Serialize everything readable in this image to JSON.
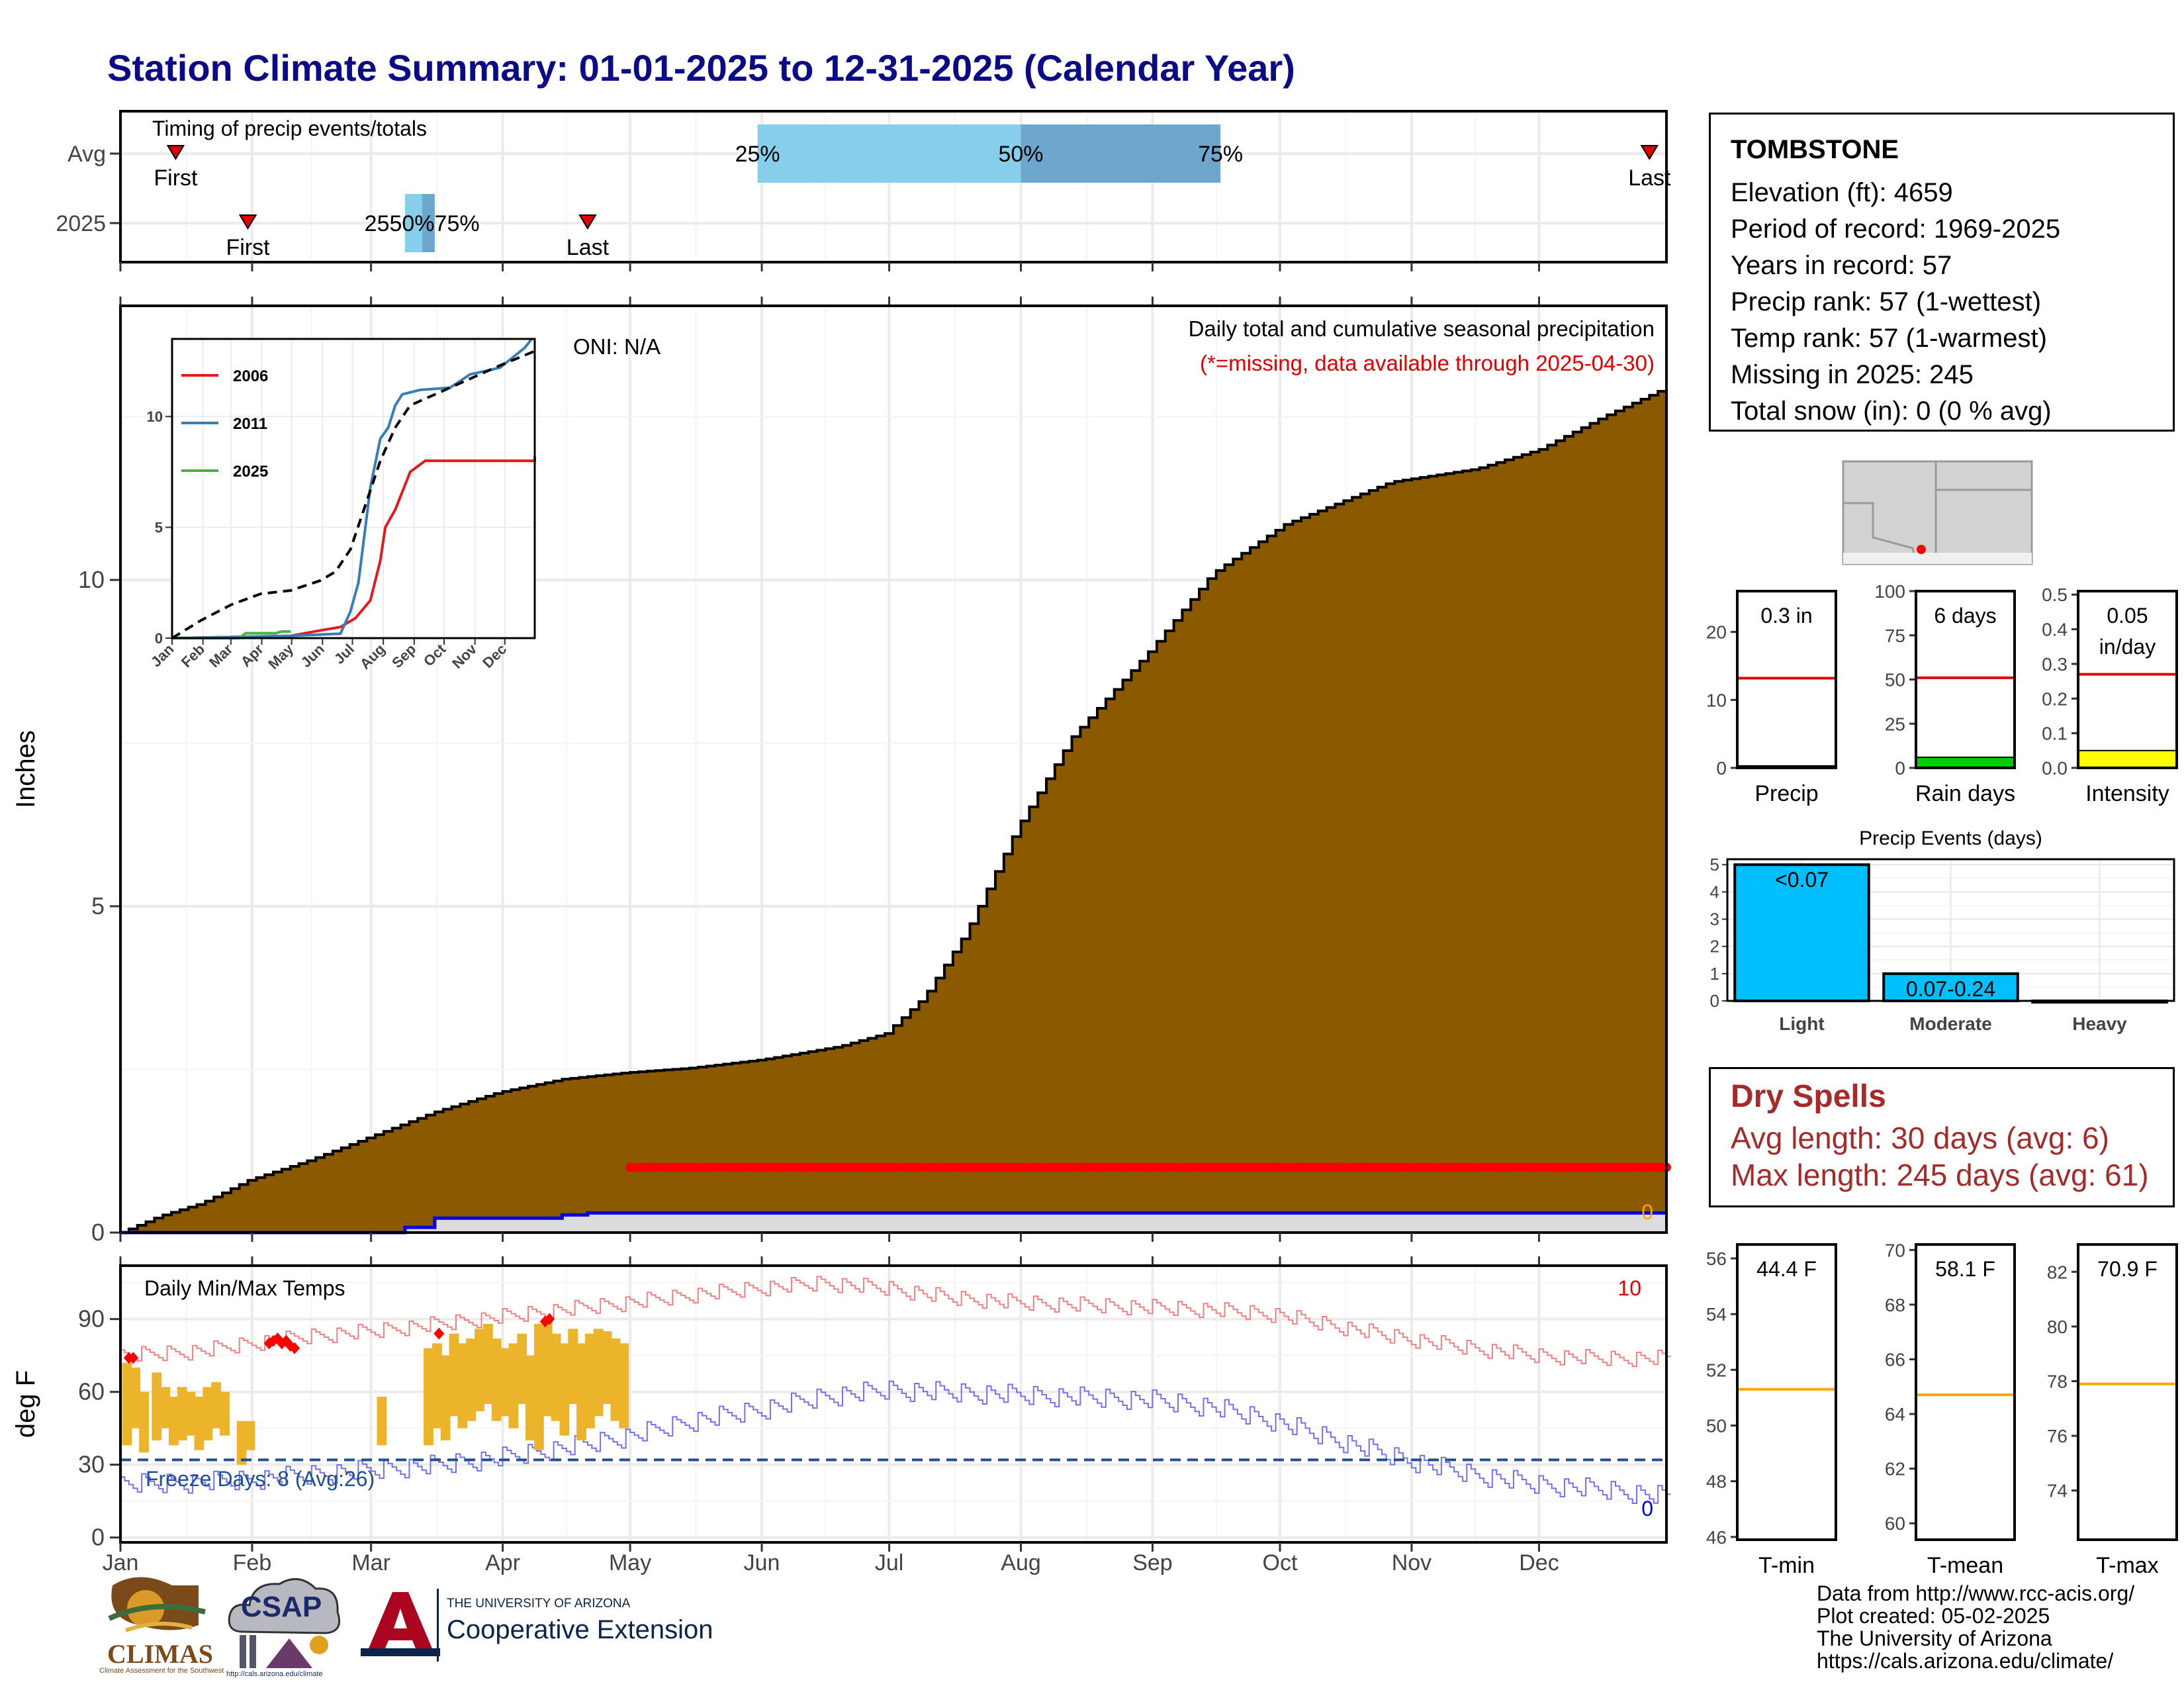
{
  "title": "Station Climate Summary: 01-01-2025 to 12-31-2025 (Calendar Year)",
  "months": [
    "Jan",
    "Feb",
    "Mar",
    "Apr",
    "May",
    "Jun",
    "Jul",
    "Aug",
    "Sep",
    "Oct",
    "Nov",
    "Dec"
  ],
  "station": {
    "name": "TOMBSTONE",
    "lines": [
      "Elevation (ft): 4659",
      "Period of record: 1969-2025",
      "Years in record: 57",
      "Precip rank: 57 (1-wettest)",
      "Temp rank: 57 (1-warmest)",
      "Missing in 2025: 245",
      "Total snow (in): 0 (0 % avg)"
    ]
  },
  "dry_spells": {
    "heading": "Dry Spells",
    "avg": "Avg length: 30 days (avg: 6)",
    "max": "Max length: 245 days (avg: 61)"
  },
  "credits": [
    "Data from http://www.rcc-acis.org/",
    "Plot created: 05-02-2025",
    "The University of Arizona",
    "https://cals.arizona.edu/climate/"
  ],
  "logos": {
    "climas": "CLIMAS",
    "climas_sub": "Climate Assessment for the Southwest",
    "csap": "CSAP",
    "csap_url": "http://cals.arizona.edu/climate",
    "ua_small": "THE UNIVERSITY OF ARIZONA",
    "ua_big": "Cooperative Extension"
  },
  "chart_data": [
    {
      "id": "timing",
      "type": "timeline",
      "title": "Timing of precip events/totals",
      "rows": [
        "Avg",
        "2025"
      ],
      "avg": {
        "first_day": 14,
        "last_day": 361,
        "p25_day": 151,
        "p50_day": 213,
        "p75_day": 260
      },
      "y2025": {
        "first_day": 31,
        "last_day": 111,
        "p25_day": 68,
        "p50_day": 72,
        "p75_day": 75
      },
      "labels": {
        "first": "First",
        "last": "Last",
        "p25": "25%",
        "p50": "50%",
        "p75": "75%",
        "overlap": "2550%75%"
      }
    },
    {
      "id": "cumulative",
      "type": "area",
      "title": "Daily total and cumulative seasonal precipitation",
      "subtitle": "(*=missing, data available through 2025-04-30)",
      "ylabel": "Inches",
      "ylim": [
        0,
        14.2
      ],
      "yticks": [
        0,
        5,
        10
      ],
      "xlim": [
        1,
        365
      ],
      "oni": "ONI: N/A",
      "snow_label": "0",
      "avg_cumulative": [
        [
          1,
          0
        ],
        [
          10,
          0.25
        ],
        [
          20,
          0.45
        ],
        [
          31,
          0.8
        ],
        [
          45,
          1.1
        ],
        [
          59,
          1.45
        ],
        [
          75,
          1.85
        ],
        [
          90,
          2.15
        ],
        [
          105,
          2.35
        ],
        [
          120,
          2.45
        ],
        [
          135,
          2.52
        ],
        [
          152,
          2.65
        ],
        [
          170,
          2.85
        ],
        [
          181,
          3.05
        ],
        [
          190,
          3.6
        ],
        [
          200,
          4.6
        ],
        [
          212,
          6.2
        ],
        [
          225,
          7.6
        ],
        [
          243,
          8.9
        ],
        [
          258,
          10.1
        ],
        [
          275,
          10.85
        ],
        [
          300,
          11.5
        ],
        [
          320,
          11.7
        ],
        [
          335,
          12.0
        ],
        [
          350,
          12.5
        ],
        [
          365,
          12.95
        ]
      ],
      "obs_2025_cumulative": [
        [
          1,
          0
        ],
        [
          68,
          0
        ],
        [
          68,
          0.08
        ],
        [
          75,
          0.08
        ],
        [
          75,
          0.22
        ],
        [
          105,
          0.22
        ],
        [
          105,
          0.27
        ],
        [
          111,
          0.27
        ],
        [
          111,
          0.3
        ],
        [
          365,
          0.3
        ]
      ],
      "missing_start_day": 121,
      "missing_end_day": 365,
      "missing_marker_value": 1.0
    },
    {
      "id": "inset",
      "type": "line",
      "xticks": [
        "Jan",
        "Feb",
        "Mar",
        "Apr",
        "May",
        "Jun",
        "Jul",
        "Aug",
        "Sep",
        "Oct",
        "Nov",
        "Dec"
      ],
      "yticks": [
        0,
        5,
        10
      ],
      "ylim": [
        0,
        13.5
      ],
      "series": [
        {
          "name": "2006",
          "color": "#e41a1c",
          "values": [
            [
              1,
              0
            ],
            [
              60,
              0.05
            ],
            [
              120,
              0.1
            ],
            [
              150,
              0.35
            ],
            [
              170,
              0.5
            ],
            [
              185,
              0.9
            ],
            [
              200,
              1.7
            ],
            [
              210,
              3.5
            ],
            [
              215,
              5.0
            ],
            [
              225,
              5.8
            ],
            [
              240,
              7.5
            ],
            [
              255,
              8.0
            ],
            [
              365,
              8.0
            ],
            [
              365,
              8.2
            ]
          ]
        },
        {
          "name": "2011",
          "color": "#377eb8",
          "values": [
            [
              1,
              0
            ],
            [
              60,
              0.05
            ],
            [
              120,
              0.1
            ],
            [
              170,
              0.2
            ],
            [
              180,
              1.2
            ],
            [
              188,
              2.5
            ],
            [
              195,
              5.0
            ],
            [
              200,
              6.8
            ],
            [
              210,
              9.0
            ],
            [
              218,
              9.5
            ],
            [
              225,
              10.5
            ],
            [
              232,
              11.0
            ],
            [
              250,
              11.2
            ],
            [
              280,
              11.3
            ],
            [
              300,
              11.9
            ],
            [
              330,
              12.2
            ],
            [
              355,
              13.1
            ],
            [
              362,
              13.5
            ]
          ]
        },
        {
          "name": "2025",
          "color": "#4daf4a",
          "values": [
            [
              1,
              0
            ],
            [
              68,
              0
            ],
            [
              75,
              0.22
            ],
            [
              105,
              0.22
            ],
            [
              111,
              0.3
            ],
            [
              120,
              0.3
            ]
          ]
        },
        {
          "name": "",
          "color": "#000000",
          "dashed": true,
          "values": [
            [
              1,
              0
            ],
            [
              30,
              0.8
            ],
            [
              60,
              1.5
            ],
            [
              90,
              2.0
            ],
            [
              120,
              2.15
            ],
            [
              150,
              2.6
            ],
            [
              165,
              3.0
            ],
            [
              180,
              4.0
            ],
            [
              195,
              6.0
            ],
            [
              210,
              8.0
            ],
            [
              225,
              9.5
            ],
            [
              240,
              10.5
            ],
            [
              270,
              11.1
            ],
            [
              300,
              11.7
            ],
            [
              330,
              12.3
            ],
            [
              365,
              12.95
            ]
          ]
        }
      ]
    },
    {
      "id": "precip_bar",
      "type": "bar",
      "label": "0.3 in",
      "xlabel": "Precip",
      "yticks": [
        0,
        10,
        20
      ],
      "ylim": [
        0,
        26
      ],
      "value": 0.3,
      "avg": 13.2
    },
    {
      "id": "raindays_bar",
      "type": "bar",
      "label": "6 days",
      "xlabel": "Rain days",
      "yticks": [
        0,
        25,
        50,
        75,
        100
      ],
      "ylim": [
        0,
        100
      ],
      "value": 6,
      "avg": 51
    },
    {
      "id": "intensity_bar",
      "type": "bar",
      "label": "0.05",
      "label2": "in/day",
      "xlabel": "Intensity",
      "yticks": [
        "0.0",
        "0.1",
        "0.2",
        "0.3",
        "0.4",
        "0.5"
      ],
      "ylim": [
        0,
        0.51
      ],
      "value": 0.05,
      "avg": 0.27
    },
    {
      "id": "precip_events",
      "type": "bar",
      "title": "Precip Events (days)",
      "categories": [
        "Light",
        "Moderate",
        "Heavy"
      ],
      "values": [
        5,
        1,
        0
      ],
      "bar_labels": [
        "<0.07",
        "0.07-0.24",
        ""
      ],
      "yticks": [
        0,
        1,
        2,
        3,
        4,
        5
      ],
      "ylim": [
        0,
        5.2
      ]
    },
    {
      "id": "temps",
      "type": "line",
      "title": "Daily Min/Max Temps",
      "ylabel": "deg F",
      "ylim": [
        -2,
        112
      ],
      "yticks": [
        0,
        30,
        60,
        90
      ],
      "freeze_label": "Freeze Days: 8 (Avg:26)",
      "freeze_line": 32,
      "count_hot": "10",
      "count_cold": "0",
      "avg_max": [
        [
          1,
          75
        ],
        [
          20,
          77
        ],
        [
          31,
          80
        ],
        [
          45,
          83
        ],
        [
          59,
          85
        ],
        [
          75,
          88
        ],
        [
          90,
          91
        ],
        [
          105,
          94
        ],
        [
          121,
          97
        ],
        [
          135,
          100
        ],
        [
          152,
          103
        ],
        [
          166,
          105
        ],
        [
          181,
          103
        ],
        [
          196,
          99
        ],
        [
          212,
          97
        ],
        [
          227,
          96
        ],
        [
          243,
          95
        ],
        [
          258,
          94
        ],
        [
          273,
          92
        ],
        [
          288,
          87
        ],
        [
          304,
          82
        ],
        [
          320,
          78
        ],
        [
          335,
          75
        ],
        [
          350,
          74
        ],
        [
          365,
          74
        ]
      ],
      "avg_min": [
        [
          1,
          22
        ],
        [
          20,
          23
        ],
        [
          31,
          24
        ],
        [
          45,
          26
        ],
        [
          59,
          28
        ],
        [
          75,
          30
        ],
        [
          90,
          33
        ],
        [
          105,
          37
        ],
        [
          121,
          42
        ],
        [
          135,
          48
        ],
        [
          152,
          53
        ],
        [
          166,
          58
        ],
        [
          181,
          61
        ],
        [
          196,
          60
        ],
        [
          212,
          59
        ],
        [
          227,
          58
        ],
        [
          243,
          57
        ],
        [
          258,
          54
        ],
        [
          273,
          48
        ],
        [
          288,
          40
        ],
        [
          304,
          32
        ],
        [
          320,
          26
        ],
        [
          335,
          22
        ],
        [
          350,
          20
        ],
        [
          365,
          17
        ]
      ],
      "obs_2025": [
        {
          "day": 2,
          "min": 38,
          "max": 72
        },
        {
          "day": 4,
          "min": 45,
          "max": 70
        },
        {
          "day": 6,
          "min": 35,
          "max": 60
        },
        {
          "day": 9,
          "min": 40,
          "max": 68
        },
        {
          "day": 11,
          "min": 45,
          "max": 62
        },
        {
          "day": 13,
          "min": 38,
          "max": 58
        },
        {
          "day": 15,
          "min": 40,
          "max": 62
        },
        {
          "day": 17,
          "min": 42,
          "max": 60
        },
        {
          "day": 19,
          "min": 36,
          "max": 58
        },
        {
          "day": 21,
          "min": 40,
          "max": 62
        },
        {
          "day": 23,
          "min": 45,
          "max": 64
        },
        {
          "day": 25,
          "min": 42,
          "max": 60
        },
        {
          "day": 29,
          "min": 30,
          "max": 48
        },
        {
          "day": 31,
          "min": 36,
          "max": 48
        },
        {
          "day": 62,
          "min": 38,
          "max": 58
        },
        {
          "day": 73,
          "min": 38,
          "max": 78
        },
        {
          "day": 75,
          "min": 45,
          "max": 80
        },
        {
          "day": 77,
          "min": 40,
          "max": 75
        },
        {
          "day": 79,
          "min": 50,
          "max": 84
        },
        {
          "day": 81,
          "min": 45,
          "max": 80
        },
        {
          "day": 83,
          "min": 48,
          "max": 82
        },
        {
          "day": 85,
          "min": 52,
          "max": 86
        },
        {
          "day": 87,
          "min": 55,
          "max": 88
        },
        {
          "day": 89,
          "min": 48,
          "max": 82
        },
        {
          "day": 91,
          "min": 50,
          "max": 78
        },
        {
          "day": 93,
          "min": 45,
          "max": 80
        },
        {
          "day": 95,
          "min": 55,
          "max": 84
        },
        {
          "day": 97,
          "min": 40,
          "max": 75
        },
        {
          "day": 99,
          "min": 36,
          "max": 88
        },
        {
          "day": 101,
          "min": 50,
          "max": 90
        },
        {
          "day": 103,
          "min": 48,
          "max": 84
        },
        {
          "day": 105,
          "min": 42,
          "max": 80
        },
        {
          "day": 107,
          "min": 55,
          "max": 86
        },
        {
          "day": 109,
          "min": 40,
          "max": 80
        },
        {
          "day": 111,
          "min": 45,
          "max": 84
        },
        {
          "day": 113,
          "min": 50,
          "max": 86
        },
        {
          "day": 115,
          "min": 55,
          "max": 85
        },
        {
          "day": 117,
          "min": 48,
          "max": 82
        },
        {
          "day": 119,
          "min": 45,
          "max": 80
        }
      ],
      "record_markers": [
        [
          3,
          74
        ],
        [
          4,
          74
        ],
        [
          36,
          80
        ],
        [
          37,
          81
        ],
        [
          38,
          82
        ],
        [
          39,
          80
        ],
        [
          40,
          81
        ],
        [
          41,
          79
        ],
        [
          42,
          78
        ],
        [
          76,
          84
        ],
        [
          101,
          89
        ],
        [
          102,
          90
        ]
      ]
    },
    {
      "id": "tmin_bar",
      "type": "bar",
      "label": "44.4 F",
      "xlabel": "T-min",
      "yticks": [
        46,
        48,
        50,
        52,
        54,
        56
      ],
      "ylim": [
        45.9,
        56.5
      ],
      "value": 44.4,
      "avg": 51.3
    },
    {
      "id": "tmean_bar",
      "type": "bar",
      "label": "58.1 F",
      "xlabel": "T-mean",
      "yticks": [
        60,
        62,
        64,
        66,
        68,
        70
      ],
      "ylim": [
        59.4,
        70.2
      ],
      "value": 58.1,
      "avg": 64.7
    },
    {
      "id": "tmax_bar",
      "type": "bar",
      "label": "70.9 F",
      "xlabel": "T-max",
      "yticks": [
        74,
        76,
        78,
        80,
        82
      ],
      "ylim": [
        72.2,
        83.0
      ],
      "value": 70.9,
      "avg": 77.9
    }
  ]
}
